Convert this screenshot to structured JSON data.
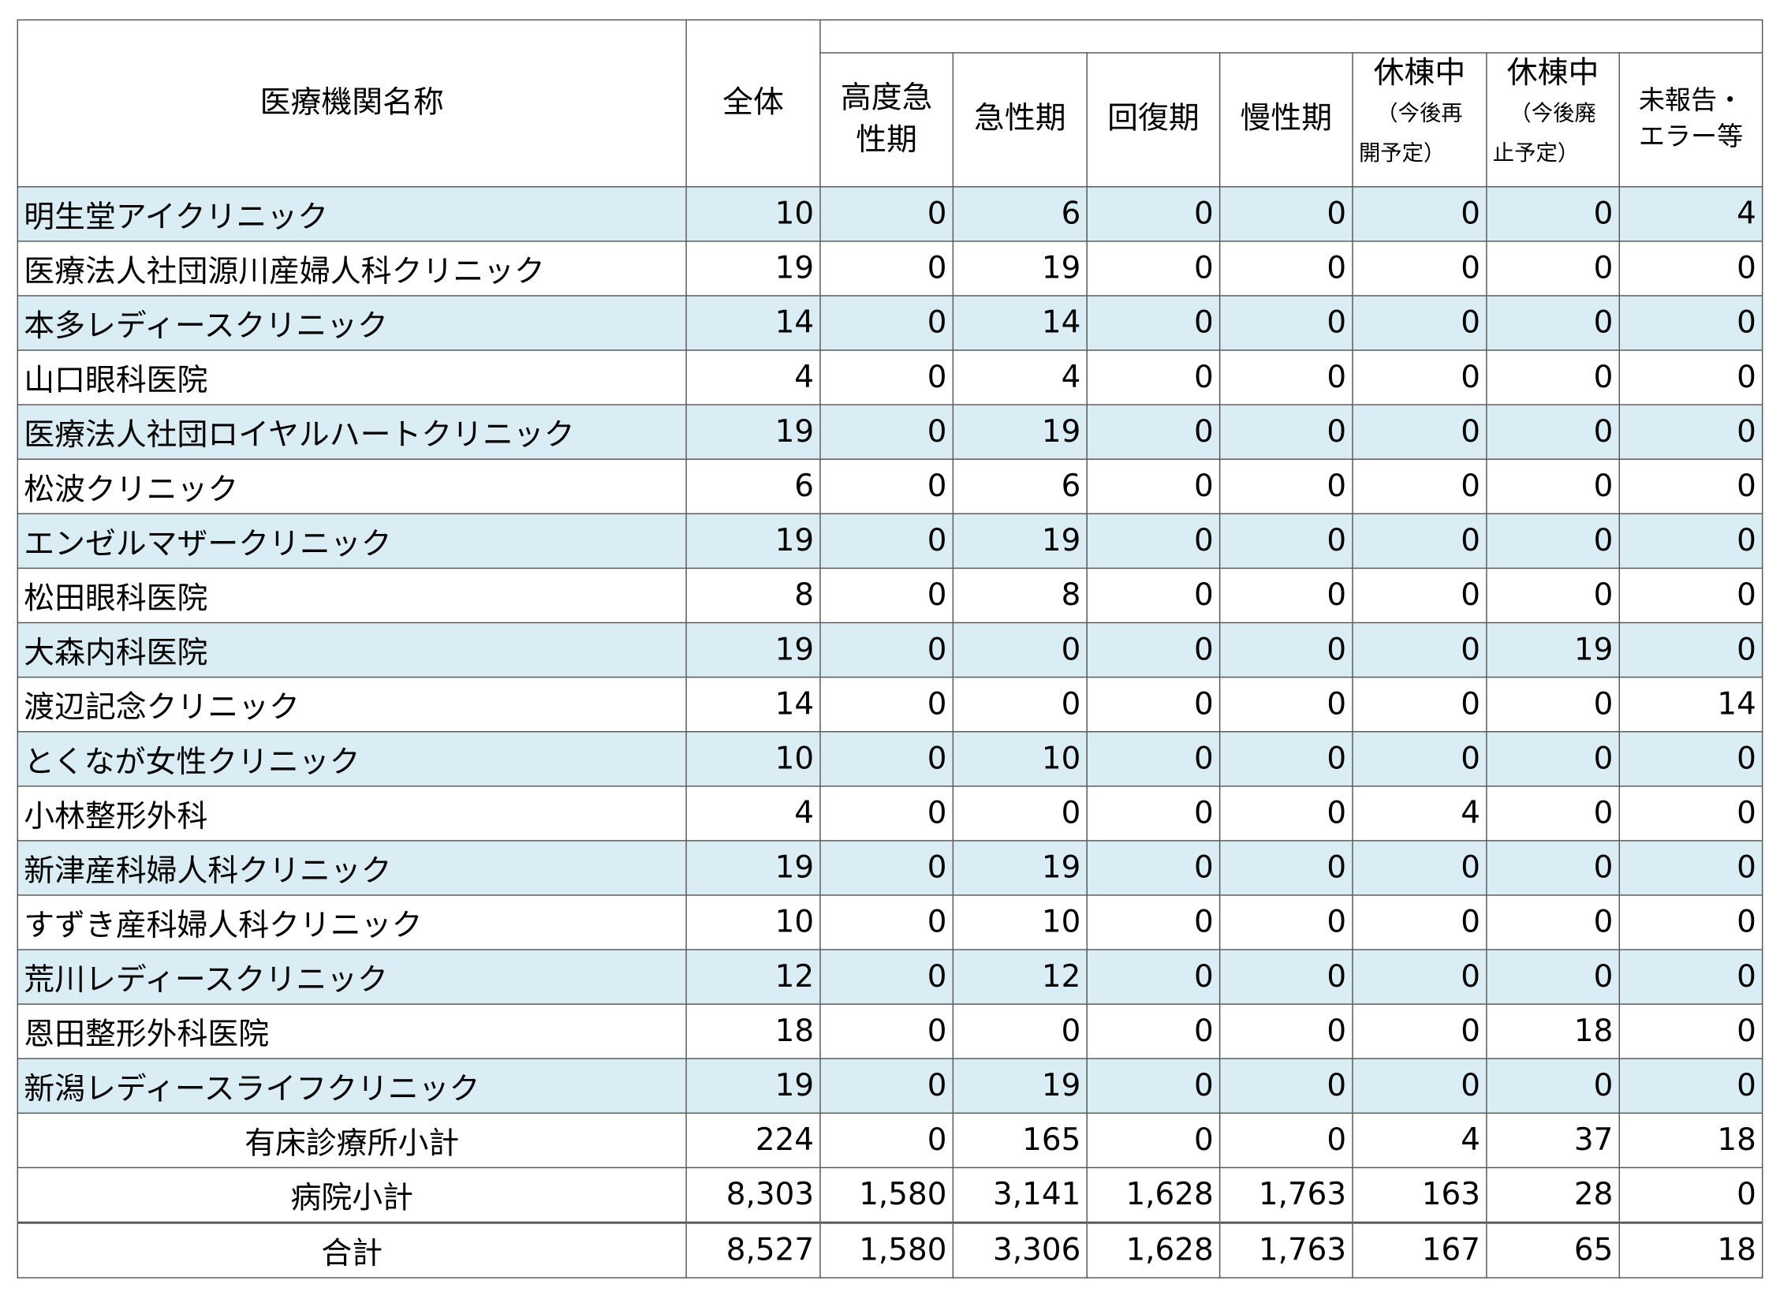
{
  "headers": {
    "name": "医療機関名称",
    "total": "全体",
    "high_acute": "高度急性期",
    "high_acute_l1": "高度急",
    "high_acute_l2": "性期",
    "acute": "急性期",
    "recovery": "回復期",
    "chronic": "慢性期",
    "closed_reopen_l1": "休棟中",
    "closed_reopen_l2": "（今後再",
    "closed_reopen_l3": "開予定）",
    "closed_abolish_l1": "休棟中",
    "closed_abolish_l2": "（今後廃",
    "closed_abolish_l3": "止予定）",
    "unreported_l1": "未報告・",
    "unreported_l2": "エラー等"
  },
  "rows": [
    {
      "name": "明生堂アイクリニック",
      "v": [
        "10",
        "0",
        "6",
        "0",
        "0",
        "0",
        "0",
        "4"
      ]
    },
    {
      "name": "医療法人社団源川産婦人科クリニック",
      "v": [
        "19",
        "0",
        "19",
        "0",
        "0",
        "0",
        "0",
        "0"
      ]
    },
    {
      "name": "本多レディースクリニック",
      "v": [
        "14",
        "0",
        "14",
        "0",
        "0",
        "0",
        "0",
        "0"
      ]
    },
    {
      "name": "山口眼科医院",
      "v": [
        "4",
        "0",
        "4",
        "0",
        "0",
        "0",
        "0",
        "0"
      ]
    },
    {
      "name": "医療法人社団ロイヤルハートクリニック",
      "v": [
        "19",
        "0",
        "19",
        "0",
        "0",
        "0",
        "0",
        "0"
      ]
    },
    {
      "name": "松波クリニック",
      "v": [
        "6",
        "0",
        "6",
        "0",
        "0",
        "0",
        "0",
        "0"
      ]
    },
    {
      "name": "エンゼルマザークリニック",
      "v": [
        "19",
        "0",
        "19",
        "0",
        "0",
        "0",
        "0",
        "0"
      ]
    },
    {
      "name": "松田眼科医院",
      "v": [
        "8",
        "0",
        "8",
        "0",
        "0",
        "0",
        "0",
        "0"
      ]
    },
    {
      "name": "大森内科医院",
      "v": [
        "19",
        "0",
        "0",
        "0",
        "0",
        "0",
        "19",
        "0"
      ]
    },
    {
      "name": "渡辺記念クリニック",
      "v": [
        "14",
        "0",
        "0",
        "0",
        "0",
        "0",
        "0",
        "14"
      ]
    },
    {
      "name": "とくなが女性クリニック",
      "v": [
        "10",
        "0",
        "10",
        "0",
        "0",
        "0",
        "0",
        "0"
      ]
    },
    {
      "name": "小林整形外科",
      "v": [
        "4",
        "0",
        "0",
        "0",
        "0",
        "4",
        "0",
        "0"
      ]
    },
    {
      "name": "新津産科婦人科クリニック",
      "v": [
        "19",
        "0",
        "19",
        "0",
        "0",
        "0",
        "0",
        "0"
      ]
    },
    {
      "name": "すずき産科婦人科クリニック",
      "v": [
        "10",
        "0",
        "10",
        "0",
        "0",
        "0",
        "0",
        "0"
      ]
    },
    {
      "name": "荒川レディースクリニック",
      "v": [
        "12",
        "0",
        "12",
        "0",
        "0",
        "0",
        "0",
        "0"
      ]
    },
    {
      "name": "恩田整形外科医院",
      "v": [
        "18",
        "0",
        "0",
        "0",
        "0",
        "0",
        "18",
        "0"
      ]
    },
    {
      "name": "新潟レディースライフクリニック",
      "v": [
        "19",
        "0",
        "19",
        "0",
        "0",
        "0",
        "0",
        "0"
      ]
    }
  ],
  "summary": [
    {
      "name": "有床診療所小計",
      "v": [
        "224",
        "0",
        "165",
        "0",
        "0",
        "4",
        "37",
        "18"
      ]
    },
    {
      "name": "病院小計",
      "v": [
        "8,303",
        "1,580",
        "3,141",
        "1,628",
        "1,763",
        "163",
        "28",
        "0"
      ]
    },
    {
      "name": "合計",
      "v": [
        "8,527",
        "1,580",
        "3,306",
        "1,628",
        "1,763",
        "167",
        "65",
        "18"
      ]
    }
  ],
  "colors": {
    "alt_row": "#dbedf4",
    "border": "#555555"
  }
}
